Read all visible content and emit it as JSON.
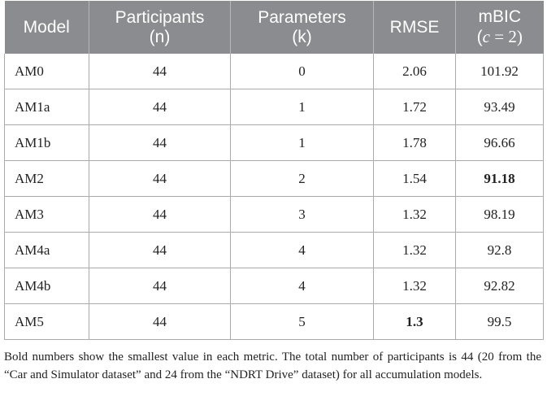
{
  "table": {
    "headers": [
      {
        "line1": "Model",
        "line2": ""
      },
      {
        "line1": "Participants",
        "line2": "(n)"
      },
      {
        "line1": "Parameters",
        "line2": "(k)"
      },
      {
        "line1": "RMSE",
        "line2": ""
      },
      {
        "line1": "mBIC",
        "line2_open": "(",
        "line2_var": "c",
        "line2_rest": " = 2)"
      }
    ],
    "rows": [
      {
        "model": "AM0",
        "participants": "44",
        "parameters": "0",
        "rmse": "2.06",
        "mbic": "101.92"
      },
      {
        "model": "AM1a",
        "participants": "44",
        "parameters": "1",
        "rmse": "1.72",
        "mbic": "93.49"
      },
      {
        "model": "AM1b",
        "participants": "44",
        "parameters": "1",
        "rmse": "1.78",
        "mbic": "96.66"
      },
      {
        "model": "AM2",
        "participants": "44",
        "parameters": "2",
        "rmse": "1.54",
        "mbic": "91.18"
      },
      {
        "model": "AM3",
        "participants": "44",
        "parameters": "3",
        "rmse": "1.32",
        "mbic": "98.19"
      },
      {
        "model": "AM4a",
        "participants": "44",
        "parameters": "4",
        "rmse": "1.32",
        "mbic": "92.8"
      },
      {
        "model": "AM4b",
        "participants": "44",
        "parameters": "4",
        "rmse": "1.32",
        "mbic": "92.82"
      },
      {
        "model": "AM5",
        "participants": "44",
        "parameters": "5",
        "rmse": "1.3",
        "mbic": "99.5"
      }
    ],
    "bold_cells": [
      {
        "row": 3,
        "col": "mbic"
      },
      {
        "row": 7,
        "col": "rmse"
      }
    ]
  },
  "footnote": "Bold numbers show the smallest value in each metric. The total number of participants is 44 (20 from the “Car and Simulator dataset” and 24 from the “NDRT Drive” dataset) for all accumulation models.",
  "colors": {
    "header_bg": "#8a8c8f",
    "header_text": "#ffffff",
    "border": "#a9abad",
    "body_text": "#222222"
  }
}
